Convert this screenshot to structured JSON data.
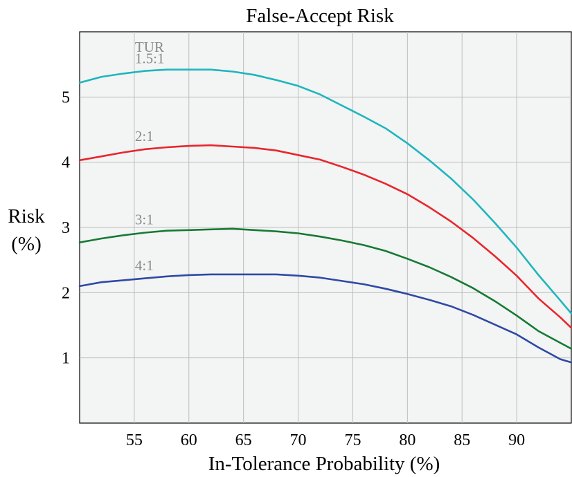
{
  "chart_data": {
    "type": "line",
    "title": "False-Accept Risk",
    "xlabel": "In-Tolerance Probability (%)",
    "ylabel_line1": "Risk",
    "ylabel_line2": "(%)",
    "xlim": [
      50,
      95
    ],
    "ylim": [
      0,
      6
    ],
    "xticks": [
      55,
      60,
      65,
      70,
      75,
      80,
      85,
      90
    ],
    "yticks": [
      1,
      2,
      3,
      4,
      5
    ],
    "legend_title": "TUR",
    "grid": true,
    "series": [
      {
        "name": "1.5:1",
        "color": "#1fb5bd",
        "x": [
          50,
          52,
          54,
          56,
          58,
          60,
          62,
          64,
          66,
          68,
          70,
          72,
          74,
          76,
          78,
          80,
          82,
          84,
          86,
          88,
          90,
          92,
          94,
          95
        ],
        "y": [
          5.22,
          5.31,
          5.36,
          5.4,
          5.42,
          5.42,
          5.42,
          5.39,
          5.34,
          5.26,
          5.17,
          5.04,
          4.87,
          4.7,
          4.52,
          4.29,
          4.03,
          3.75,
          3.43,
          3.07,
          2.69,
          2.27,
          1.88,
          1.68
        ]
      },
      {
        "name": "2:1",
        "color": "#e8262c",
        "x": [
          50,
          52,
          54,
          56,
          58,
          60,
          62,
          64,
          66,
          68,
          70,
          72,
          74,
          76,
          78,
          80,
          82,
          84,
          86,
          88,
          90,
          92,
          94,
          95
        ],
        "y": [
          4.03,
          4.09,
          4.15,
          4.2,
          4.23,
          4.25,
          4.26,
          4.24,
          4.22,
          4.18,
          4.11,
          4.04,
          3.93,
          3.81,
          3.67,
          3.51,
          3.31,
          3.09,
          2.84,
          2.56,
          2.26,
          1.91,
          1.62,
          1.46
        ]
      },
      {
        "name": "3:1",
        "color": "#157a33",
        "x": [
          50,
          52,
          54,
          56,
          58,
          60,
          62,
          64,
          66,
          68,
          70,
          72,
          74,
          76,
          78,
          80,
          82,
          84,
          86,
          88,
          90,
          92,
          94,
          95
        ],
        "y": [
          2.77,
          2.83,
          2.88,
          2.92,
          2.95,
          2.96,
          2.97,
          2.98,
          2.96,
          2.94,
          2.91,
          2.86,
          2.8,
          2.73,
          2.64,
          2.52,
          2.39,
          2.24,
          2.07,
          1.87,
          1.65,
          1.41,
          1.23,
          1.14
        ]
      },
      {
        "name": "4:1",
        "color": "#2e4aa5",
        "x": [
          50,
          52,
          54,
          56,
          58,
          60,
          62,
          64,
          66,
          68,
          70,
          72,
          74,
          76,
          78,
          80,
          82,
          84,
          86,
          88,
          90,
          92,
          94,
          95
        ],
        "y": [
          2.1,
          2.16,
          2.19,
          2.22,
          2.25,
          2.27,
          2.28,
          2.28,
          2.28,
          2.28,
          2.26,
          2.23,
          2.18,
          2.13,
          2.06,
          1.98,
          1.89,
          1.79,
          1.66,
          1.51,
          1.36,
          1.16,
          0.98,
          0.93
        ]
      }
    ]
  }
}
